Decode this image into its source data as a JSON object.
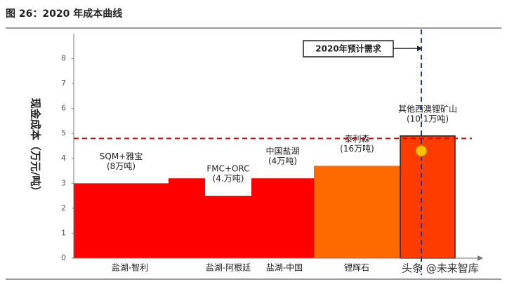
{
  "chart_data": {
    "type": "bar",
    "title": "图 26：2020 年成本曲线",
    "y_label": "现金成本（万元/吨）",
    "values": [
      3,
      3.2,
      2.5,
      3.2,
      3.7,
      4.9
    ],
    "colors": [
      "#ff0000",
      "#ff0000",
      "#ff0000",
      "#ff0000",
      "#ff6a00",
      "#ff3c00"
    ],
    "bar_labels": [
      [
        "SQM+雅宝",
        "(8万吨)"
      ],
      null,
      [
        "FMC+ORC",
        "(4.万吨)"
      ],
      [
        "中国盐湖",
        "(4万吨)"
      ],
      [
        "泰利森",
        "(16万吨)"
      ],
      [
        "其他西澳锂矿山",
        "(10.1万吨)"
      ]
    ],
    "x_labels": [
      "盐湖-智利",
      "盐湖-阿根廷",
      "盐湖-中国",
      "锂辉石"
    ],
    "ylim": [
      0,
      9
    ],
    "yticks": [
      0,
      1,
      2,
      3,
      4,
      5,
      6,
      7,
      8
    ],
    "cost_line": 4.8,
    "price_point": 4.3,
    "demand_label": "2020年预计需求",
    "watermark": "头条 @未来智库"
  }
}
